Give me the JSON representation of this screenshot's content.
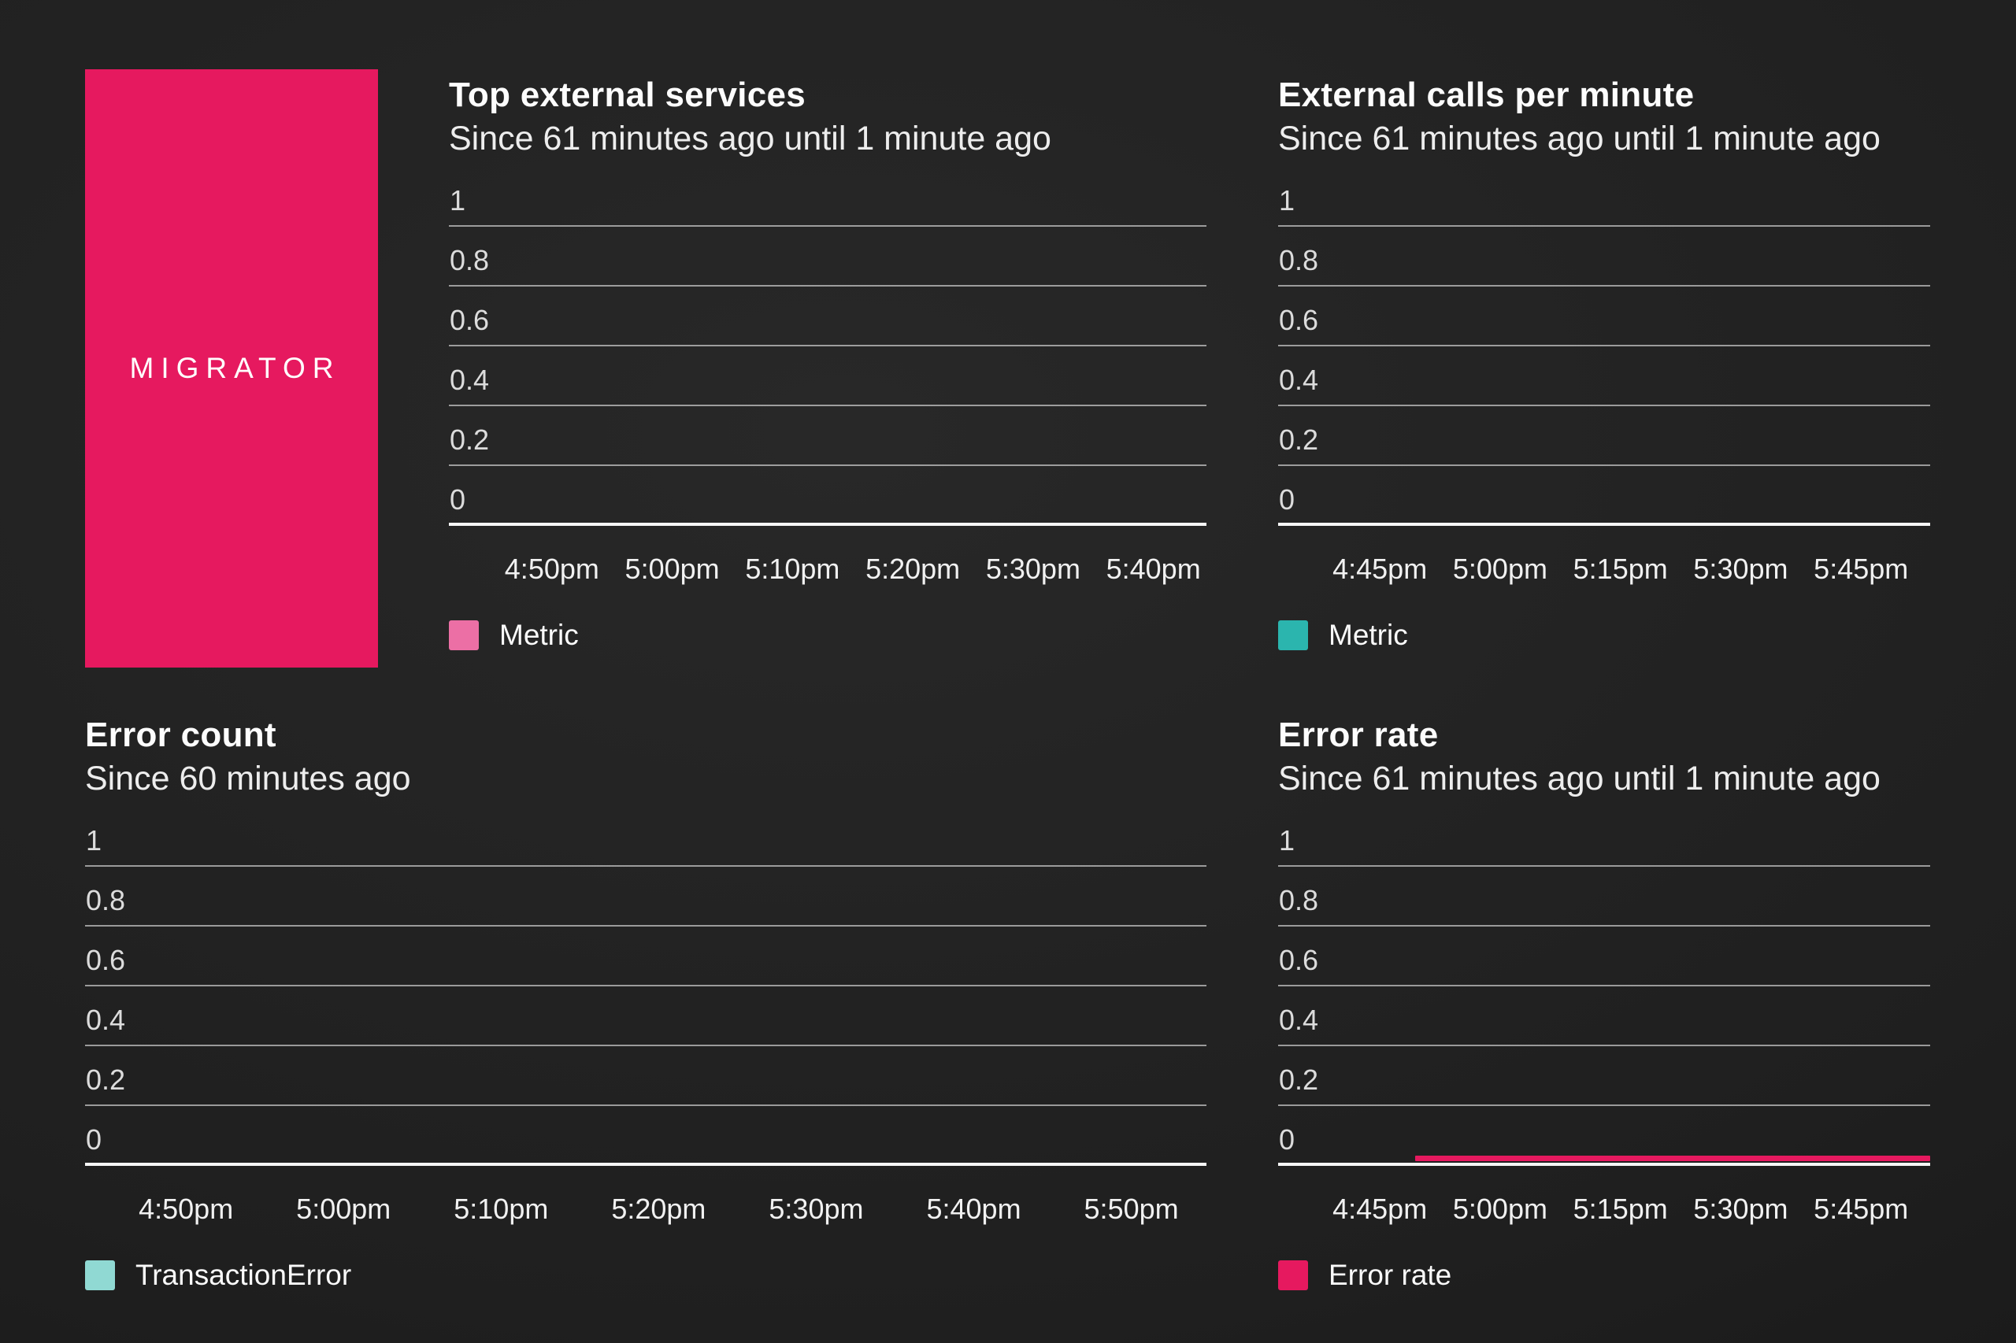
{
  "brand": {
    "name": "MIGRATOR",
    "color": "#E6195F",
    "text_color": "#FFFFFF"
  },
  "colors": {
    "background_dark": "#1F1F1F",
    "gridline": "#8C8C8C",
    "axis_line": "#F7F7F7",
    "accent_pink": "#E6195F",
    "accent_light_pink": "#EC6FA5",
    "accent_teal": "#2BB5AE",
    "accent_light_aqua": "#90D9D3"
  },
  "chart_data": [
    {
      "id": "top-external-services",
      "type": "line",
      "title": "Top external services",
      "subtitle": "Since 61 minutes ago until 1 minute ago",
      "ylim": [
        0,
        1
      ],
      "y_labels": [
        "1",
        "0.8",
        "0.6",
        "0.4",
        "0.2",
        "0"
      ],
      "x_ticks": [
        "4:50pm",
        "5:00pm",
        "5:10pm",
        "5:20pm",
        "5:30pm",
        "5:40pm"
      ],
      "grid": true,
      "legend_position": "bottom-left",
      "legend": [
        {
          "label": "Metric",
          "color": "#EC6FA5"
        }
      ],
      "series": [
        {
          "name": "Metric",
          "color": "#EC6FA5",
          "points": [],
          "empty": true
        }
      ]
    },
    {
      "id": "external-calls-per-minute",
      "type": "line",
      "title": "External calls per minute",
      "subtitle": "Since 61 minutes ago until 1 minute ago",
      "ylim": [
        0,
        1
      ],
      "y_labels": [
        "1",
        "0.8",
        "0.6",
        "0.4",
        "0.2",
        "0"
      ],
      "x_ticks": [
        "4:45pm",
        "5:00pm",
        "5:15pm",
        "5:30pm",
        "5:45pm"
      ],
      "grid": true,
      "legend_position": "bottom-left",
      "legend": [
        {
          "label": "Metric",
          "color": "#2BB5AE"
        }
      ],
      "series": [
        {
          "name": "Metric",
          "color": "#2BB5AE",
          "points": [],
          "empty": true
        }
      ]
    },
    {
      "id": "error-count",
      "type": "line",
      "title": "Error count",
      "subtitle": "Since 60 minutes ago",
      "ylim": [
        0,
        1
      ],
      "y_labels": [
        "1",
        "0.8",
        "0.6",
        "0.4",
        "0.2",
        "0"
      ],
      "x_ticks": [
        "4:50pm",
        "5:00pm",
        "5:10pm",
        "5:20pm",
        "5:30pm",
        "5:40pm",
        "5:50pm"
      ],
      "grid": true,
      "legend_position": "bottom-left",
      "legend": [
        {
          "label": "TransactionError",
          "color": "#90D9D3"
        }
      ],
      "series": [
        {
          "name": "TransactionError",
          "color": "#90D9D3",
          "points": [],
          "empty": true
        }
      ]
    },
    {
      "id": "error-rate",
      "type": "line",
      "title": "Error rate",
      "subtitle": "Since 61 minutes ago until 1 minute ago",
      "ylim": [
        0,
        1
      ],
      "y_labels": [
        "1",
        "0.8",
        "0.6",
        "0.4",
        "0.2",
        "0"
      ],
      "x_ticks": [
        "4:45pm",
        "5:00pm",
        "5:15pm",
        "5:30pm",
        "5:45pm"
      ],
      "grid": true,
      "legend_position": "bottom-left",
      "legend": [
        {
          "label": "Error rate",
          "color": "#E6195F"
        }
      ],
      "series": [
        {
          "name": "Error rate",
          "color": "#E6195F",
          "points": [
            [
              "4:57pm",
              0
            ],
            [
              "5:44pm",
              0
            ]
          ],
          "description": "flat line at value 0 spanning from ~21% of the time window to the right edge"
        }
      ]
    }
  ]
}
